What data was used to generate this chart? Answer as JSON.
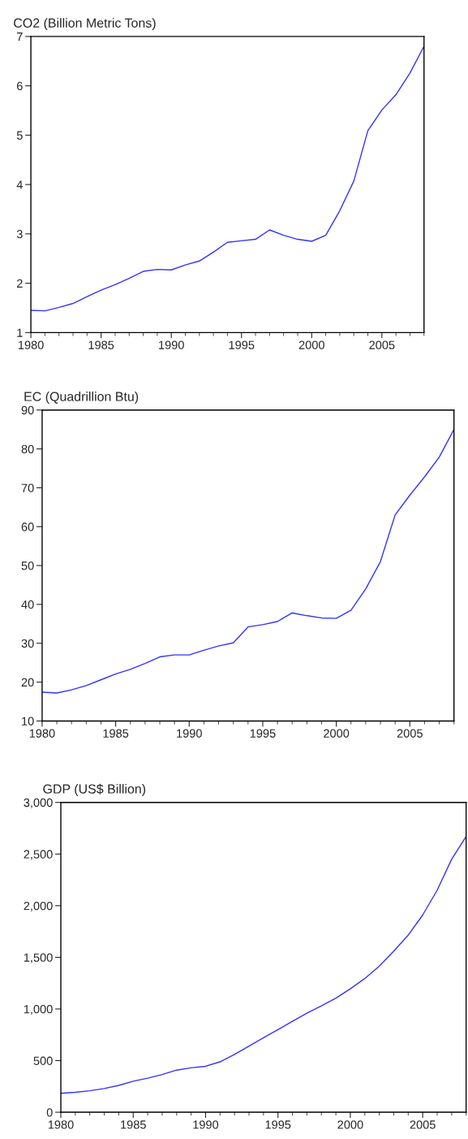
{
  "chart_data": [
    {
      "type": "line",
      "title": "CO2 (Billion Metric Tons)",
      "xlim": [
        1980,
        2008
      ],
      "xticks": [
        1980,
        1985,
        1990,
        1995,
        2000,
        2005
      ],
      "ylim": [
        1,
        7
      ],
      "yticks": [
        1,
        2,
        3,
        4,
        5,
        6,
        7
      ],
      "grid": false,
      "legend": false,
      "x": [
        1980,
        1981,
        1982,
        1983,
        1984,
        1985,
        1986,
        1987,
        1988,
        1989,
        1990,
        1991,
        1992,
        1993,
        1994,
        1995,
        1996,
        1997,
        1998,
        1999,
        2000,
        2001,
        2002,
        2003,
        2004,
        2005,
        2006,
        2007,
        2008
      ],
      "series": [
        {
          "color": "#3333ff",
          "values": [
            1.45,
            1.44,
            1.51,
            1.59,
            1.73,
            1.86,
            1.97,
            2.1,
            2.24,
            2.28,
            2.27,
            2.37,
            2.45,
            2.63,
            2.83,
            2.86,
            2.89,
            3.08,
            2.97,
            2.89,
            2.85,
            2.97,
            3.47,
            4.07,
            5.09,
            5.51,
            5.82,
            6.26,
            6.8
          ]
        }
      ]
    },
    {
      "type": "line",
      "title": "EC (Quadrillion Btu)",
      "xlim": [
        1980,
        2008
      ],
      "xticks": [
        1980,
        1985,
        1990,
        1995,
        2000,
        2005
      ],
      "ylim": [
        10,
        90
      ],
      "yticks": [
        10,
        20,
        30,
        40,
        50,
        60,
        70,
        80,
        90
      ],
      "grid": false,
      "legend": false,
      "x": [
        1980,
        1981,
        1982,
        1983,
        1984,
        1985,
        1986,
        1987,
        1988,
        1989,
        1990,
        1991,
        1992,
        1993,
        1994,
        1995,
        1996,
        1997,
        1998,
        1999,
        2000,
        2001,
        2002,
        2003,
        2004,
        2005,
        2006,
        2007,
        2008
      ],
      "series": [
        {
          "color": "#3333ff",
          "values": [
            17.4,
            17.2,
            18.0,
            19.1,
            20.6,
            22.1,
            23.3,
            24.8,
            26.5,
            27.0,
            27.0,
            28.2,
            29.3,
            30.1,
            34.2,
            34.8,
            35.6,
            37.8,
            37.1,
            36.5,
            36.4,
            38.5,
            44.0,
            51.0,
            63.0,
            68.1,
            72.8,
            77.9,
            85.0
          ]
        }
      ]
    },
    {
      "type": "line",
      "title": "GDP (US$ Billion)",
      "xlim": [
        1980,
        2008
      ],
      "xticks": [
        1980,
        1985,
        1990,
        1995,
        2000,
        2005
      ],
      "ylim": [
        0,
        3000
      ],
      "yticks": [
        0,
        500,
        {
          "value": 1000,
          "label": "1,000"
        },
        {
          "value": 1500,
          "label": "1,500"
        },
        {
          "value": 2000,
          "label": "2,000"
        },
        {
          "value": 2500,
          "label": "2,500"
        },
        {
          "value": 3000,
          "label": "3,000"
        }
      ],
      "grid": false,
      "legend": false,
      "x": [
        1980,
        1981,
        1982,
        1983,
        1984,
        1985,
        1986,
        1987,
        1988,
        1989,
        1990,
        1991,
        1992,
        1993,
        1994,
        1995,
        1996,
        1997,
        1998,
        1999,
        2000,
        2001,
        2002,
        2003,
        2004,
        2005,
        2006,
        2007,
        2008
      ],
      "series": [
        {
          "color": "#3333ff",
          "values": [
            183,
            193,
            208,
            230,
            260,
            300,
            330,
            365,
            408,
            430,
            445,
            488,
            560,
            640,
            722,
            800,
            880,
            960,
            1030,
            1105,
            1195,
            1295,
            1415,
            1560,
            1715,
            1910,
            2150,
            2450,
            2670
          ]
        }
      ]
    }
  ]
}
